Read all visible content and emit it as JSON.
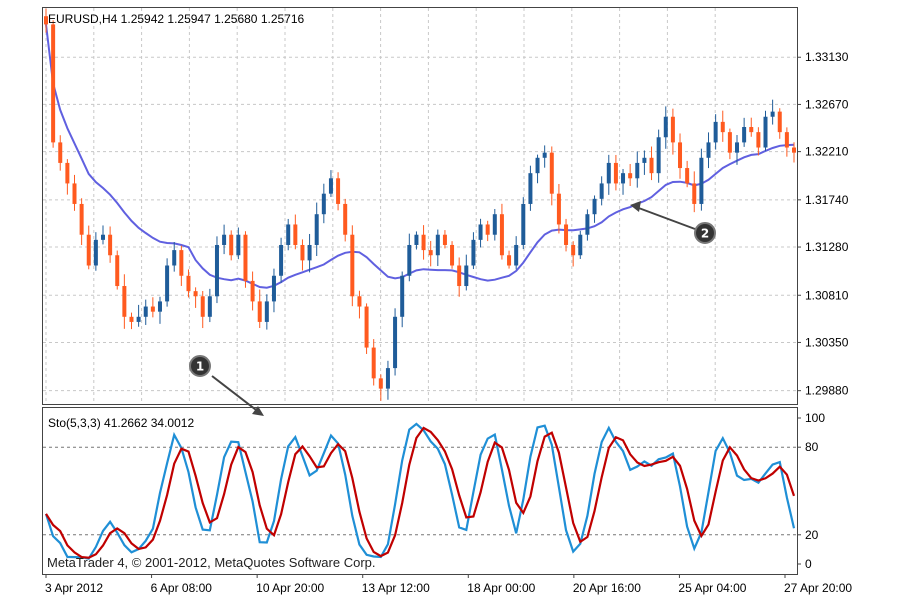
{
  "main_header": "EURUSD,H4  1.25942 1.25947 1.25680 1.25716",
  "indicator_header": "Sto(5,3,3) 41.2662 34.0012",
  "copyright": "MetaTrader 4, © 2001-2012, MetaQuotes Software Corp.",
  "markers": [
    {
      "label": "1"
    },
    {
      "label": "2"
    }
  ],
  "colors": {
    "bull_candle": "#1f5c99",
    "bear_candle": "#ff5a1f",
    "moving_average": "#6060e0",
    "stoch_main": "#1f8fd6",
    "stoch_signal": "#c00000",
    "marker_fill": "#333333",
    "grid": "#c8c8c8"
  },
  "chart_data": [
    {
      "type": "candlestick",
      "symbol": "EURUSD",
      "timeframe": "H4",
      "y_ticks": [
        "1.33130",
        "1.32670",
        "1.32210",
        "1.31740",
        "1.31280",
        "1.30810",
        "1.30350",
        "1.29880"
      ],
      "ylim": [
        1.2975,
        1.3361
      ],
      "x_ticks": [
        "3 Apr 2012",
        "6 Apr 08:00",
        "10 Apr 20:00",
        "13 Apr 12:00",
        "18 Apr 00:00",
        "20 Apr 16:00",
        "25 Apr 04:00",
        "27 Apr 20:00"
      ],
      "grid": true,
      "series": [
        {
          "kind": "ohlc",
          "close": [
            1.3345,
            1.323,
            1.321,
            1.319,
            1.317,
            1.314,
            1.311,
            1.3135,
            1.314,
            1.312,
            1.309,
            1.306,
            1.3055,
            1.306,
            1.307,
            1.3065,
            1.3075,
            1.311,
            1.3125,
            1.31,
            1.3085,
            1.308,
            1.306,
            1.308,
            1.313,
            1.314,
            1.312,
            1.314,
            1.3095,
            1.3075,
            1.3055,
            1.3075,
            1.31,
            1.313,
            1.315,
            1.313,
            1.3115,
            1.313,
            1.316,
            1.318,
            1.3195,
            1.317,
            1.314,
            1.308,
            1.307,
            1.303,
            1.3,
            1.299,
            1.301,
            1.306,
            1.31,
            1.313,
            1.314,
            1.3125,
            1.312,
            1.314,
            1.313,
            1.311,
            1.309,
            1.311,
            1.3135,
            1.315,
            1.314,
            1.316,
            1.312,
            1.311,
            1.313,
            1.317,
            1.32,
            1.3215,
            1.322,
            1.318,
            1.315,
            1.313,
            1.312,
            1.314,
            1.316,
            1.3175,
            1.319,
            1.321,
            1.319,
            1.32,
            1.3195,
            1.321,
            1.3215,
            1.32,
            1.3235,
            1.3255,
            1.323,
            1.3205,
            1.319,
            1.317,
            1.3215,
            1.323,
            1.325,
            1.324,
            1.322,
            1.323,
            1.3245,
            1.324,
            1.3225,
            1.3255,
            1.326,
            1.324,
            1.3225,
            1.322
          ],
          "ma_period": 21
        },
        {
          "kind": "stochastic",
          "name": "Sto(5,3,3)",
          "y_ticks": [
            "100",
            "80",
            "20",
            "0"
          ],
          "levels": [
            80,
            20
          ],
          "ylim": [
            0,
            100
          ]
        }
      ]
    }
  ]
}
